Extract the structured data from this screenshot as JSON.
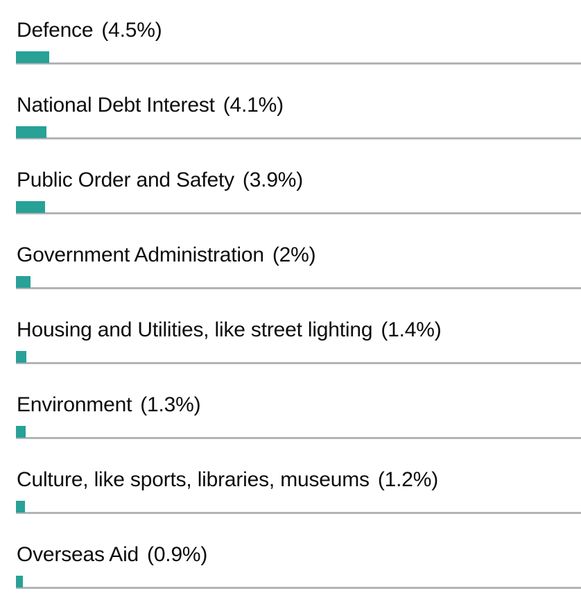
{
  "colors": {
    "bar": "#28a197",
    "baseline": "#b1b4b6",
    "text": "#0b0c0c"
  },
  "chart_data": {
    "type": "bar",
    "orientation": "horizontal",
    "categories": [
      "Defence",
      "National Debt Interest",
      "Public Order and Safety",
      "Government Administration",
      "Housing and Utilities, like street lighting",
      "Environment",
      "Culture, like sports, libraries, museums",
      "Overseas Aid"
    ],
    "value_labels": [
      "(4.5%)",
      "(4.1%)",
      "(3.9%)",
      "(2%)",
      "(1.4%)",
      "(1.3%)",
      "(1.2%)",
      "(0.9%)"
    ],
    "values": [
      4.5,
      4.1,
      3.9,
      2,
      1.4,
      1.3,
      1.2,
      0.9
    ],
    "unit": "%"
  }
}
